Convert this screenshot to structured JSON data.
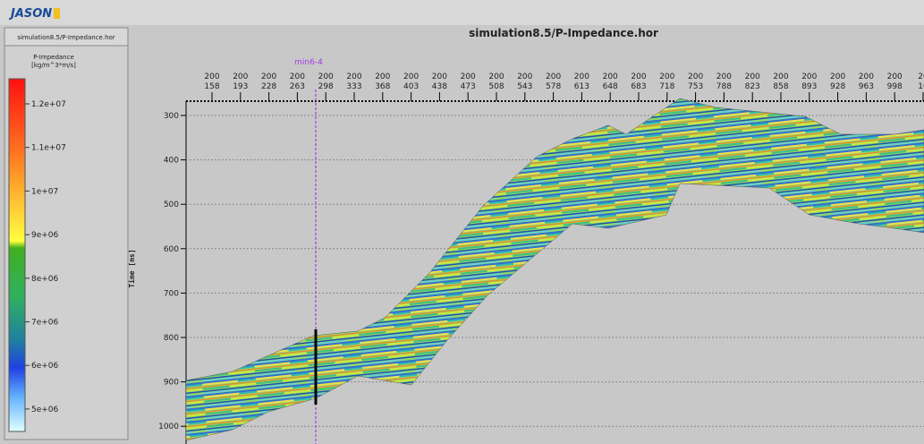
{
  "header": {
    "logo": "JASON"
  },
  "left_panel": {
    "title": "simulation8.5/P-Impedance.hor",
    "colorbar": {
      "title": "P-Impedance",
      "unit": "[kg/m^3*m/s]",
      "ticks": [
        "1.2e+07",
        "1.1e+07",
        "1e+07",
        "9e+06",
        "8e+06",
        "7e+06",
        "6e+06",
        "5e+06"
      ]
    }
  },
  "main_panel": {
    "title": "simulation8.5/P-Impedance.hor",
    "well": "min6-4",
    "y_axis": {
      "label": "Time [ms]",
      "ticks": [
        300,
        400,
        500,
        600,
        700,
        800,
        900,
        1000
      ]
    },
    "x_axis": {
      "columns": [
        {
          "inline": 200,
          "xline": 158
        },
        {
          "inline": 200,
          "xline": 193
        },
        {
          "inline": 200,
          "xline": 228
        },
        {
          "inline": 200,
          "xline": 263
        },
        {
          "inline": 200,
          "xline": 298
        },
        {
          "inline": 200,
          "xline": 333
        },
        {
          "inline": 200,
          "xline": 368
        },
        {
          "inline": 200,
          "xline": 403
        },
        {
          "inline": 200,
          "xline": 438
        },
        {
          "inline": 200,
          "xline": 473
        },
        {
          "inline": 200,
          "xline": 508
        },
        {
          "inline": 200,
          "xline": 543
        },
        {
          "inline": 200,
          "xline": 578
        },
        {
          "inline": 200,
          "xline": 613
        },
        {
          "inline": 200,
          "xline": 648
        },
        {
          "inline": 200,
          "xline": 683
        },
        {
          "inline": 200,
          "xline": 718
        },
        {
          "inline": 200,
          "xline": 753
        },
        {
          "inline": 200,
          "xline": 788
        },
        {
          "inline": 200,
          "xline": 823
        },
        {
          "inline": 200,
          "xline": 858
        },
        {
          "inline": 200,
          "xline": 893
        },
        {
          "inline": 200,
          "xline": 928
        },
        {
          "inline": 200,
          "xline": 963
        },
        {
          "inline": 200,
          "xline": 998
        },
        {
          "inline": 20,
          "xline": 10
        }
      ]
    }
  }
}
